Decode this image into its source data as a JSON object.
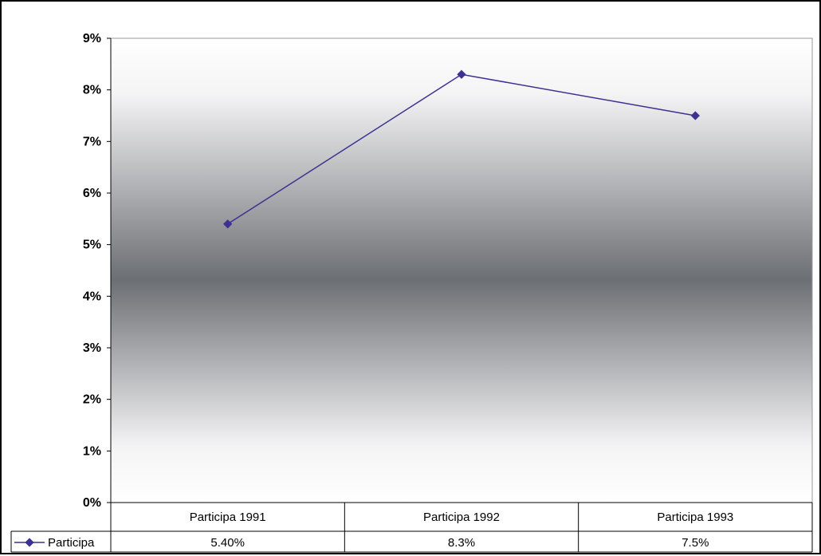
{
  "chart_data": {
    "type": "line",
    "title": "",
    "xlabel": "",
    "ylabel": "",
    "categories": [
      "Participa 1991",
      "Participa 1992",
      "Participa 1993"
    ],
    "series": [
      {
        "name": "Participa",
        "values": [
          5.4,
          8.3,
          7.5
        ],
        "value_labels": [
          "5.40%",
          "8.3%",
          "7.5%"
        ],
        "color": "#3d3291"
      }
    ],
    "y_ticks": [
      "0%",
      "1%",
      "2%",
      "3%",
      "4%",
      "5%",
      "6%",
      "7%",
      "8%",
      "9%"
    ],
    "ylim": [
      0,
      9
    ],
    "y_unit": "%",
    "grid": false,
    "data_table": true,
    "background": "vertical gradient white-grey-white"
  }
}
